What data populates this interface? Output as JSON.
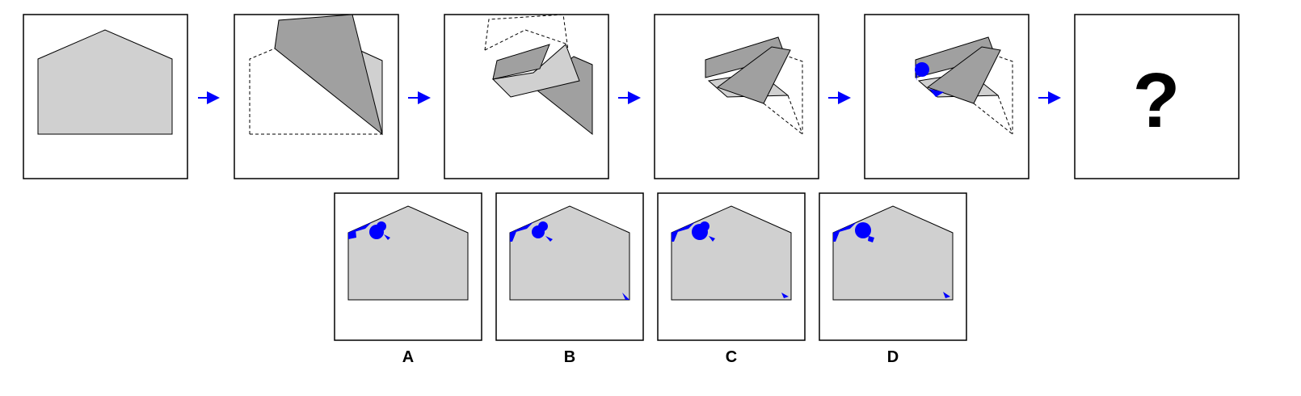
{
  "colors": {
    "paper": "#d0d0d0",
    "folded": "#a0a0a0",
    "punch": "#0000ff",
    "arrow": "#0000ff",
    "outline": "#000000"
  },
  "question": {
    "placeholder": "?"
  },
  "options": [
    {
      "label": "A"
    },
    {
      "label": "B"
    },
    {
      "label": "C"
    },
    {
      "label": "D"
    }
  ]
}
